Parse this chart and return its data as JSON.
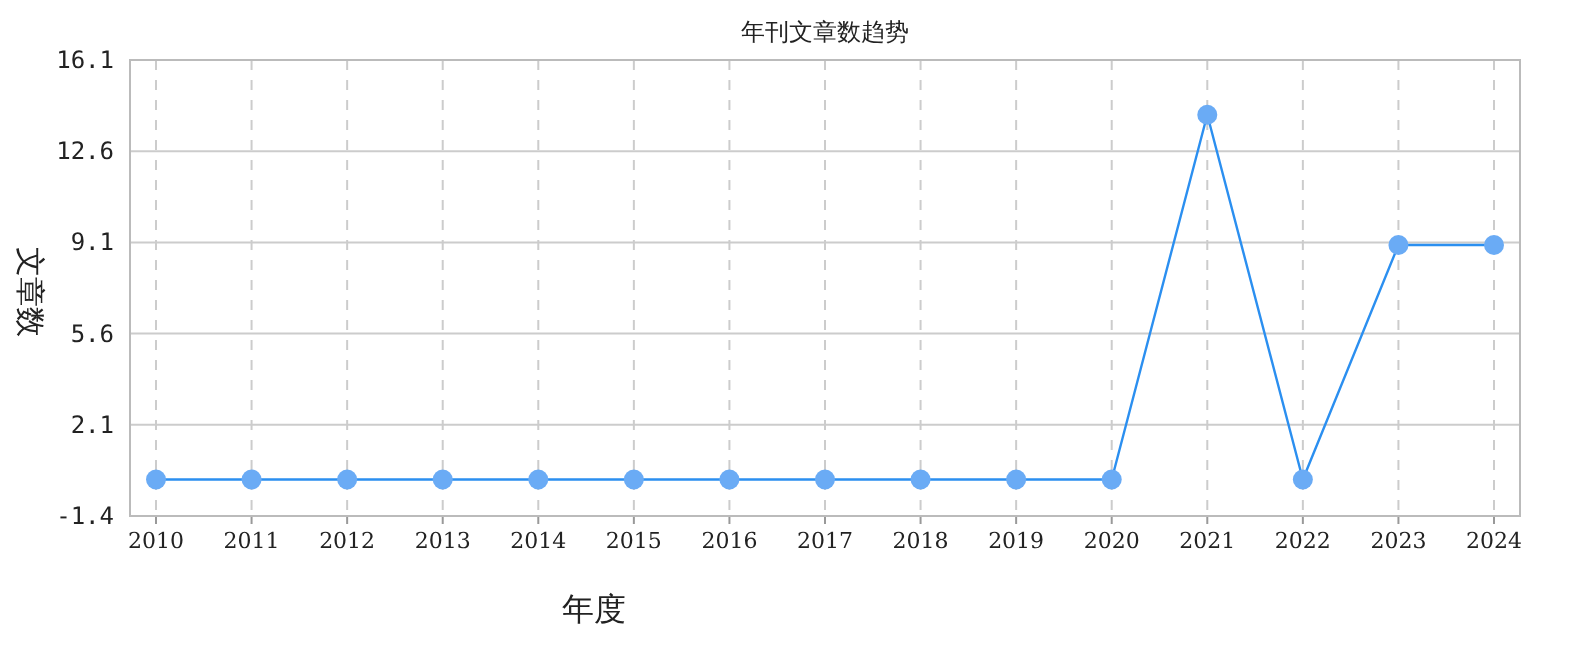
{
  "chart_data": {
    "type": "line",
    "title": "年刊文章数趋势",
    "xlabel": "年度",
    "ylabel": "文章数",
    "categories": [
      "2010",
      "2011",
      "2012",
      "2013",
      "2014",
      "2015",
      "2016",
      "2017",
      "2018",
      "2019",
      "2020",
      "2021",
      "2022",
      "2023",
      "2024"
    ],
    "series": [
      {
        "color": "#2b8ff0",
        "values": [
          0,
          0,
          0,
          0,
          0,
          0,
          0,
          0,
          0,
          0,
          0,
          14,
          0,
          9,
          9
        ]
      }
    ],
    "ylim": [
      -1.4,
      16.1
    ],
    "yticks": [
      -1.4,
      2.1,
      5.6,
      9.1,
      12.6,
      16.1
    ],
    "grid": true,
    "marker": "circle"
  }
}
